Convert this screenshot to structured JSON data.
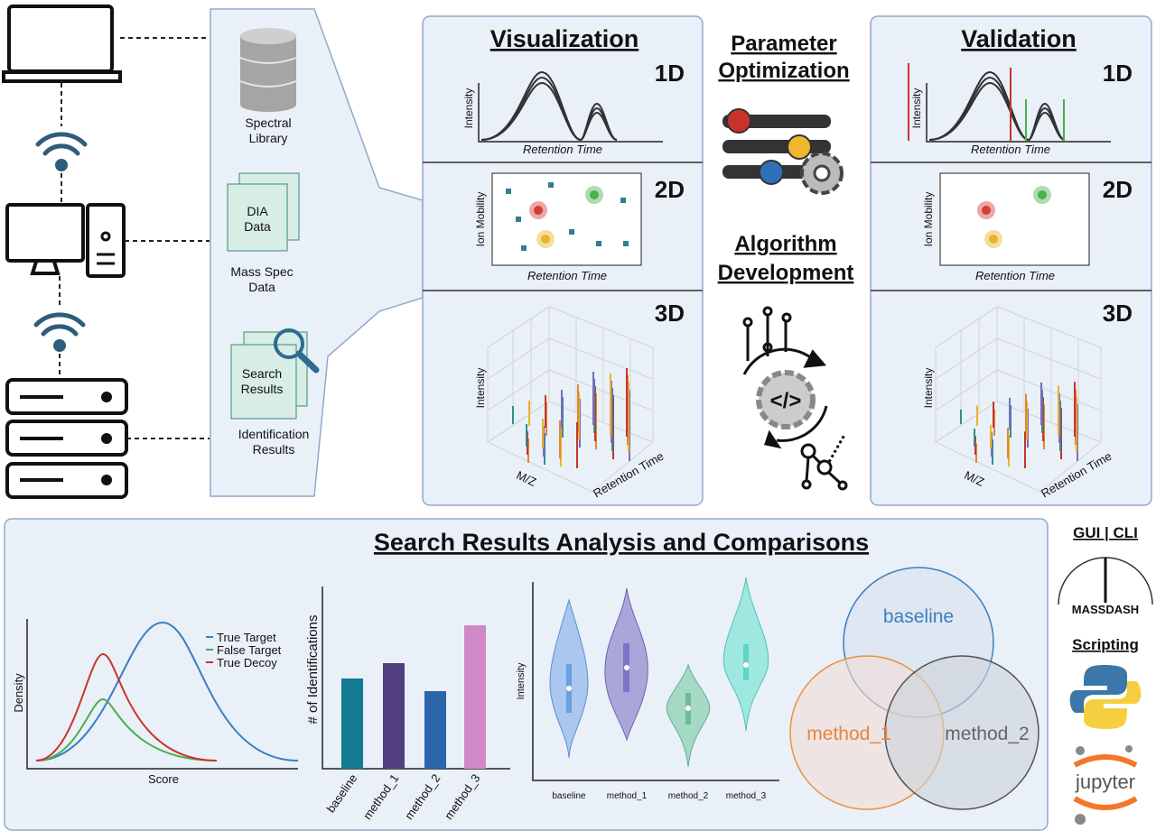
{
  "data_sources": {
    "spectral_library": [
      "Spectral",
      "Library"
    ],
    "dia_icon": [
      "DIA",
      "Data"
    ],
    "mass_spec": [
      "Mass Spec",
      "Data"
    ],
    "search_icon": [
      "Search",
      "Results"
    ],
    "identification": [
      "Identification",
      "Results"
    ]
  },
  "visualization": {
    "title": "Visualization",
    "panels": [
      {
        "dim": "1D",
        "x_label": "Retention Time",
        "y_label": "Intensity"
      },
      {
        "dim": "2D",
        "x_label": "Retention Time",
        "y_label": "Ion Mobility"
      },
      {
        "dim": "3D",
        "x_label": "M/Z",
        "y_label": "Intensity",
        "z_label": "Retention Time"
      }
    ]
  },
  "center": {
    "parameter": [
      "Parameter",
      "Optimization"
    ],
    "algorithm": [
      "Algorithm ",
      "Development"
    ],
    "code_icon": "</>"
  },
  "validation": {
    "title": "Validation",
    "panels": [
      {
        "dim": "1D",
        "x_label": "Retention Time",
        "y_label": "Intensity"
      },
      {
        "dim": "2D",
        "x_label": "Retention Time",
        "y_label": "Ion Mobility"
      },
      {
        "dim": "3D",
        "x_label": "M/Z",
        "y_label": "Intensity",
        "z_label": "Retention Time"
      }
    ]
  },
  "analysis": {
    "title": "Search Results Analysis and Comparisons",
    "density": {
      "x_label": "Score",
      "y_label": "Density",
      "legend": [
        "True Target",
        "False Target",
        "True Decoy"
      ]
    },
    "bar_chart": {
      "type": "bar",
      "y_label": "# of Identifications",
      "categories": [
        "baseline",
        "method_1",
        "method_2",
        "method_3"
      ],
      "values": [
        100,
        117,
        86,
        159
      ],
      "colors": [
        "#127a91",
        "#523f7f",
        "#2b66ad",
        "#d188c7"
      ],
      "ylim": [
        0,
        170
      ]
    },
    "violin": {
      "y_label": "Intensity",
      "categories": [
        "baseline",
        "method_1",
        "method_2",
        "method_3"
      ]
    },
    "venn": {
      "sets": [
        "baseline",
        "method_1",
        "method_2"
      ]
    }
  },
  "sidebar": {
    "gui": "GUI | CLI",
    "logo": "MASSDASH",
    "scripting": "Scripting",
    "jupyter": "jupyter"
  }
}
